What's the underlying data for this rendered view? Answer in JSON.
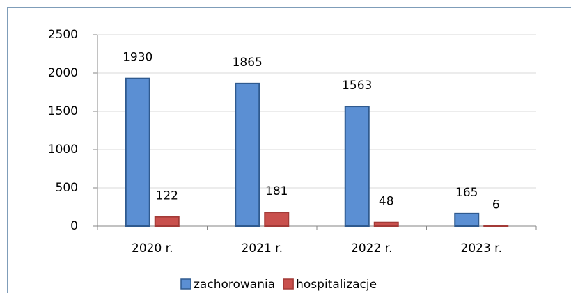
{
  "chart_data": {
    "type": "bar",
    "categories": [
      "2020 r.",
      "2021 r.",
      "2022 r.",
      "2023 r."
    ],
    "series": [
      {
        "name": "zachorowania",
        "color": "#5b8fd3",
        "values": [
          1930,
          1865,
          1563,
          165
        ]
      },
      {
        "name": "hospitalizacje",
        "color": "#c9504d",
        "values": [
          122,
          181,
          48,
          6
        ]
      }
    ],
    "ylim": [
      0,
      2500
    ],
    "yticks": [
      0,
      500,
      1000,
      1500,
      2000,
      2500
    ],
    "grid": true,
    "legend": "bottom"
  }
}
